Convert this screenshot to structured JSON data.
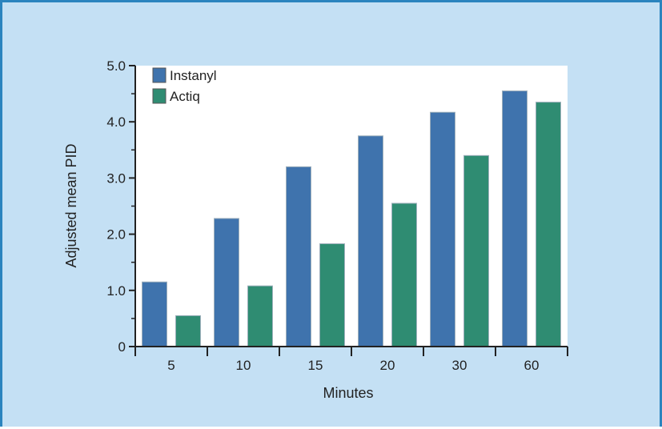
{
  "chart_data": {
    "type": "bar",
    "title": "",
    "xlabel": "Minutes",
    "ylabel": "Adjusted mean PID",
    "categories": [
      "5",
      "10",
      "15",
      "20",
      "30",
      "60"
    ],
    "series": [
      {
        "name": "Instanyl",
        "values": [
          1.15,
          2.28,
          3.2,
          3.75,
          4.17,
          4.55
        ]
      },
      {
        "name": "Actiq",
        "values": [
          0.55,
          1.08,
          1.83,
          2.55,
          3.4,
          4.35
        ]
      }
    ],
    "ylim": [
      0,
      5
    ],
    "yticks": [
      "0",
      "1.0",
      "2.0",
      "3.0",
      "4.0",
      "5.0"
    ],
    "legend_position": "top-left",
    "grid": false,
    "colors": {
      "panel_background": "#c4e0f4",
      "panel_border": "#2b84be",
      "plot_background": "#ffffff",
      "Instanyl": "#3f73ad",
      "Actiq": "#2f8c72"
    }
  }
}
